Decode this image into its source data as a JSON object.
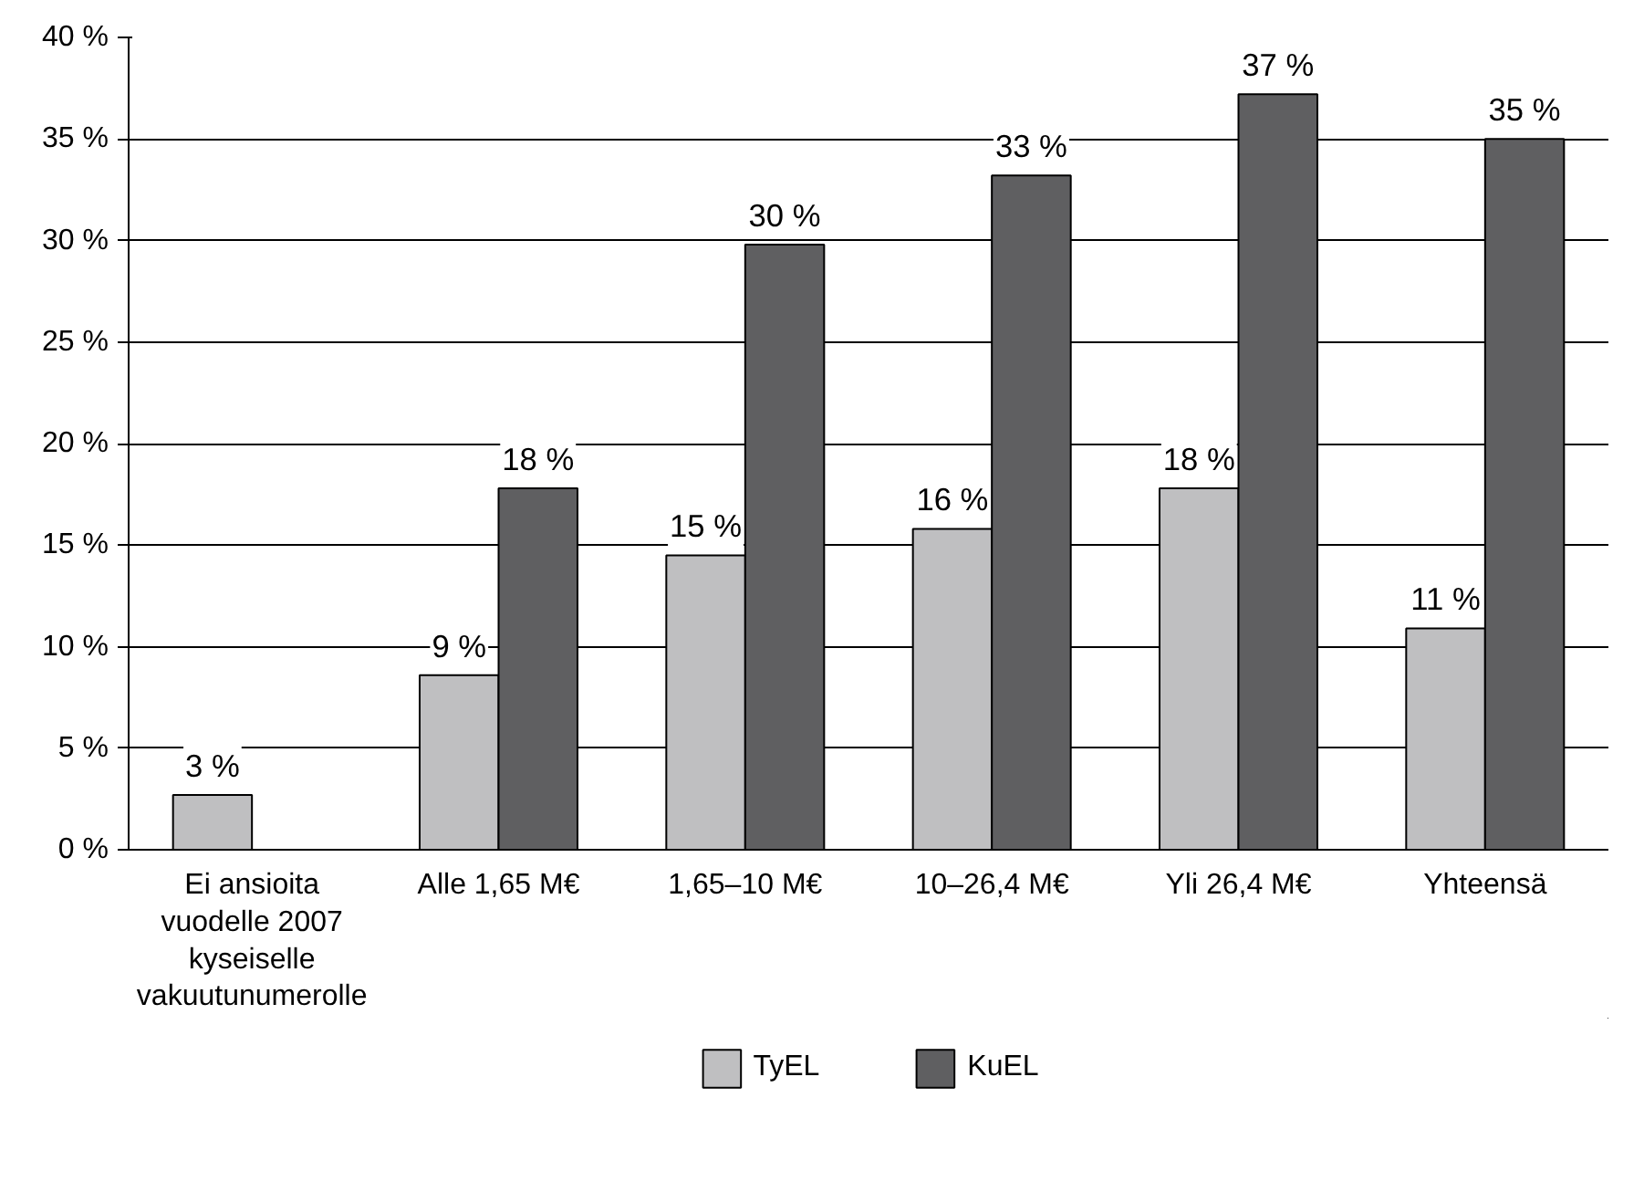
{
  "chart_data": {
    "type": "bar",
    "categories": [
      "Ei ansioita\nvuodelle 2007\nkyseiselle\nvakuutunumerolle",
      "Alle 1,65 M€",
      "1,65–10 M€",
      "10–26,4 M€",
      "Yli 26,4 M€",
      "Yhteensä"
    ],
    "series": [
      {
        "name": "TyEL",
        "color": "#bfbfc1",
        "values": [
          2.7,
          8.6,
          14.5,
          15.8,
          17.8,
          10.9
        ],
        "value_labels": [
          "3 %",
          "9 %",
          "15 %",
          "16 %",
          "18 %",
          "11 %"
        ]
      },
      {
        "name": "KuEL",
        "color": "#5f5f61",
        "values": [
          null,
          17.8,
          29.8,
          33.2,
          37.2,
          35.0
        ],
        "value_labels": [
          null,
          "18 %",
          "30 %",
          "33 %",
          "37 %",
          "35 %"
        ]
      }
    ],
    "ylim": [
      0,
      40
    ],
    "yticks": [
      {
        "value": 0,
        "label": "0 %"
      },
      {
        "value": 5,
        "label": "5 %"
      },
      {
        "value": 10,
        "label": "10 %"
      },
      {
        "value": 15,
        "label": "15 %"
      },
      {
        "value": 20,
        "label": "20 %"
      },
      {
        "value": 25,
        "label": "25 %"
      },
      {
        "value": 30,
        "label": "30 %"
      },
      {
        "value": 35,
        "label": "35 %"
      },
      {
        "value": 40,
        "label": "40 %"
      }
    ],
    "grid": "y",
    "legend": "bottom"
  }
}
